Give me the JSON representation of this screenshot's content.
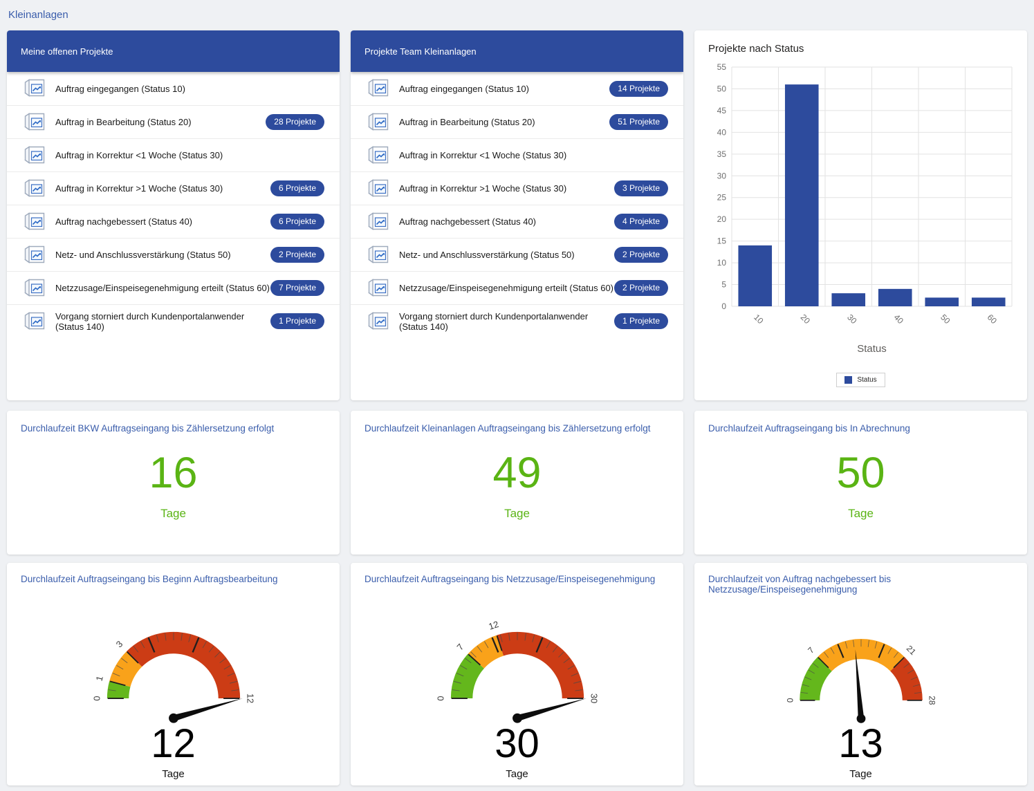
{
  "page": {
    "title": "Kleinanlagen",
    "accent_navy": "#2d4b9d",
    "accent_green": "#5ab414",
    "title_blue": "#3a5dab",
    "background": "#eff1f4"
  },
  "icons": {
    "list_item_icon": "report-chart-icon"
  },
  "panels": [
    {
      "title": "Meine offenen Projekte",
      "items": [
        {
          "label": "Auftrag eingegangen (Status 10)",
          "badge": ""
        },
        {
          "label": "Auftrag in Bearbeitung (Status 20)",
          "badge": "28 Projekte"
        },
        {
          "label": "Auftrag in Korrektur <1 Woche (Status 30)",
          "badge": ""
        },
        {
          "label": "Auftrag in Korrektur >1 Woche (Status 30)",
          "badge": "6 Projekte"
        },
        {
          "label": "Auftrag nachgebessert (Status 40)",
          "badge": "6 Projekte"
        },
        {
          "label": "Netz- und Anschlussverstärkung (Status 50)",
          "badge": "2 Projekte"
        },
        {
          "label": "Netzzusage/Einspeisegenehmigung erteilt (Status 60)",
          "badge": "7 Projekte"
        },
        {
          "label": "Vorgang storniert durch Kundenportalanwender (Status 140)",
          "badge": "1 Projekte"
        }
      ]
    },
    {
      "title": "Projekte Team Kleinanlagen",
      "items": [
        {
          "label": "Auftrag eingegangen (Status 10)",
          "badge": "14 Projekte"
        },
        {
          "label": "Auftrag in Bearbeitung (Status 20)",
          "badge": "51 Projekte"
        },
        {
          "label": "Auftrag in Korrektur <1 Woche (Status 30)",
          "badge": ""
        },
        {
          "label": "Auftrag in Korrektur >1 Woche (Status 30)",
          "badge": "3 Projekte"
        },
        {
          "label": "Auftrag nachgebessert (Status 40)",
          "badge": "4 Projekte"
        },
        {
          "label": "Netz- und Anschlussverstärkung (Status 50)",
          "badge": "2 Projekte"
        },
        {
          "label": "Netzzusage/Einspeisegenehmigung erteilt (Status 60)",
          "badge": "2 Projekte"
        },
        {
          "label": "Vorgang storniert durch Kundenportalanwender (Status 140)",
          "badge": "1 Projekte"
        }
      ]
    }
  ],
  "kpis": [
    {
      "title": "Durchlaufzeit BKW Auftragseingang bis Zählersetzung erfolgt",
      "value": "16",
      "unit": "Tage"
    },
    {
      "title": "Durchlaufzeit Kleinanlagen Auftragseingang bis Zählersetzung erfolgt",
      "value": "49",
      "unit": "Tage"
    },
    {
      "title": "Durchlaufzeit Auftragseingang bis In Abrechnung",
      "value": "50",
      "unit": "Tage"
    }
  ],
  "chart_data": [
    {
      "type": "bar",
      "title": "Projekte nach Status",
      "categories": [
        "10",
        "20",
        "30",
        "40",
        "50",
        "60"
      ],
      "values": [
        14,
        51,
        3,
        4,
        2,
        2
      ],
      "xlabel": "Status",
      "ylabel": "",
      "ylim": [
        0,
        55
      ],
      "ytick_step": 5,
      "grid": true,
      "bar_color": "#2d4b9d",
      "legend": {
        "label": "Status",
        "position": "bottom"
      }
    },
    {
      "type": "gauge",
      "title": "Durchlaufzeit Auftragseingang bis Beginn Auftragsbearbeitung",
      "value": 12,
      "unit": "Tage",
      "min": 0,
      "max": 12,
      "tick_labels": [
        0,
        1,
        3,
        12
      ],
      "segments": [
        {
          "from": 0,
          "to": 1,
          "color": "#64b71c"
        },
        {
          "from": 1,
          "to": 3,
          "color": "#f9a21a"
        },
        {
          "from": 3,
          "to": 12,
          "color": "#cc3c15"
        }
      ]
    },
    {
      "type": "gauge",
      "title": "Durchlaufzeit Auftragseingang bis Netzzusage/Einspeisegenehmigung",
      "value": 30,
      "unit": "Tage",
      "min": 0,
      "max": 30,
      "tick_labels": [
        0,
        7,
        12,
        30
      ],
      "segments": [
        {
          "from": 0,
          "to": 7,
          "color": "#64b71c"
        },
        {
          "from": 7,
          "to": 12,
          "color": "#f9a21a"
        },
        {
          "from": 12,
          "to": 30,
          "color": "#cc3c15"
        }
      ]
    },
    {
      "type": "gauge",
      "title": "Durchlaufzeit von Auftrag nachgebessert bis Netzzusage/Einspeisegenehmigung",
      "value": 13,
      "unit": "Tage",
      "min": 0,
      "max": 28,
      "tick_labels": [
        0,
        7,
        21,
        28
      ],
      "segments": [
        {
          "from": 0,
          "to": 7,
          "color": "#64b71c"
        },
        {
          "from": 7,
          "to": 21,
          "color": "#f9a21a"
        },
        {
          "from": 21,
          "to": 28,
          "color": "#cc3c15"
        }
      ]
    }
  ]
}
